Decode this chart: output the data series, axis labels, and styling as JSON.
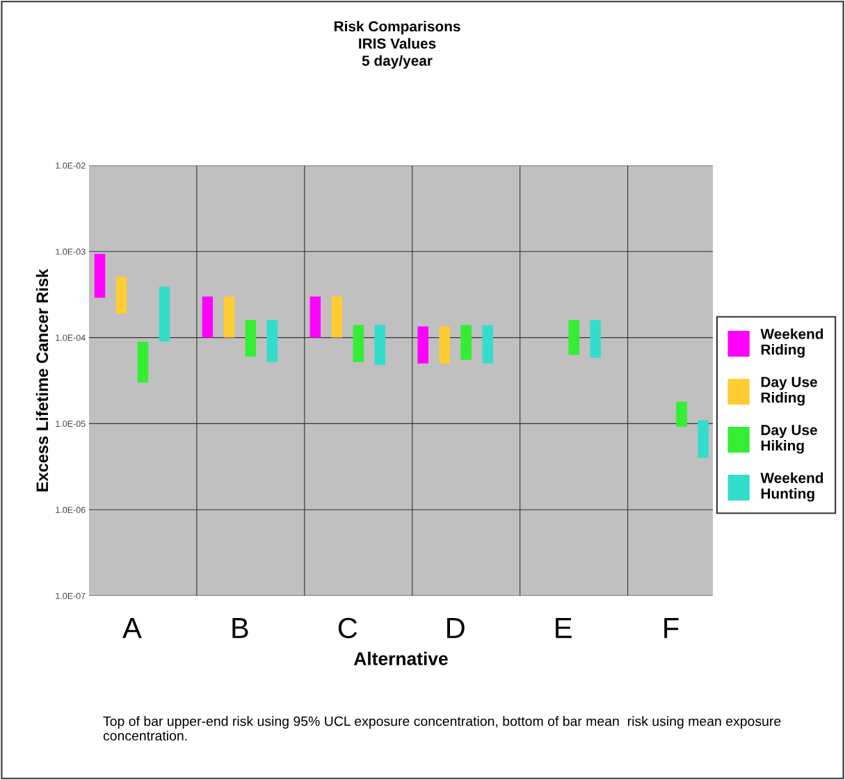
{
  "chart_data": {
    "type": "bar",
    "title": "Risk Comparisons\nIRIS Values\n5 day/year",
    "xlabel": "Alternative",
    "ylabel": "Excess Lifetime Cancer Risk",
    "categories": [
      "A",
      "B",
      "C",
      "D",
      "E",
      "F"
    ],
    "series": [
      {
        "name": "Weekend\nRiding",
        "color": "#ff00ff",
        "values": [
          0.00065,
          0.0002,
          0.0002,
          8.5e-05,
          null,
          null
        ],
        "base": [
          0.00029,
          0.0001,
          0.0001,
          5e-05,
          null,
          null
        ]
      },
      {
        "name": "Day Use\nRiding",
        "color": "#ffcc33",
        "values": [
          0.00032,
          0.0002,
          0.0002,
          8.5e-05,
          null,
          null
        ],
        "base": [
          0.00019,
          0.0001,
          0.0001,
          5e-05,
          null,
          null
        ]
      },
      {
        "name": "Day Use\nHiking",
        "color": "#33ee33",
        "values": [
          5.9e-05,
          0.0001,
          8.8e-05,
          8.5e-05,
          9.7e-05,
          8.8e-06
        ],
        "base": [
          3e-05,
          6e-05,
          5.2e-05,
          5.5e-05,
          6.3e-05,
          9.2e-06
        ]
      },
      {
        "name": "Weekend\nHunting",
        "color": "#33ddcc",
        "values": [
          0.0003,
          0.000108,
          9.2e-05,
          9e-05,
          0.000102,
          7e-06
        ],
        "base": [
          9e-05,
          5.2e-05,
          4.8e-05,
          5e-05,
          5.8e-05,
          4e-06
        ]
      }
    ],
    "log": "y",
    "ylim": [
      1e-07,
      0.01
    ],
    "yticks": [
      {
        "value": 1e-07,
        "label": "1.0E-07"
      },
      {
        "value": 1e-06,
        "label": "1.0E-06"
      },
      {
        "value": 1e-05,
        "label": "1.0E-05"
      },
      {
        "value": 0.0001,
        "label": "1.0E-04"
      },
      {
        "value": 0.001,
        "label": "1.0E-03"
      },
      {
        "value": 0.01,
        "label": "1.0E-02"
      }
    ],
    "grid": true,
    "legend": "right",
    "annotations": [
      "Top of bar upper-end risk using 95% UCL exposure concentration, bottom of bar mean  risk using mean exposure concentration."
    ]
  }
}
